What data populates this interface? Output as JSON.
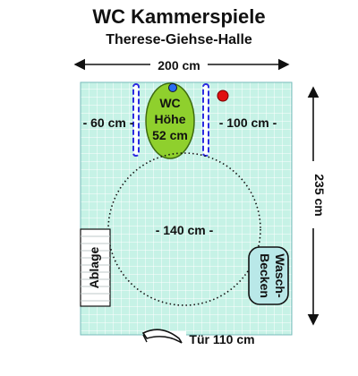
{
  "title": "WC Kammerspiele",
  "subtitle": "Therese-Giehse-Halle",
  "dimensions": {
    "width_label": "200 cm",
    "height_label": "235 cm"
  },
  "labels": {
    "left_gap": "- 60 cm -",
    "right_gap": "- 100 cm -",
    "turning_circle": "- 140 cm -",
    "door": "Tür 110 cm"
  },
  "toilet": {
    "line1": "WC",
    "line2": "Höhe",
    "line3": "52 cm"
  },
  "shelf": {
    "label": "Ablage"
  },
  "sink": {
    "line1": "Wasch-",
    "line2": "Becken"
  },
  "colors": {
    "floor": "#c6f2e6",
    "toilet": "#8fd02d",
    "grab_bar": "#2a2ae0",
    "alarm": "#e01010",
    "sink_fill": "#b9e8e8"
  }
}
